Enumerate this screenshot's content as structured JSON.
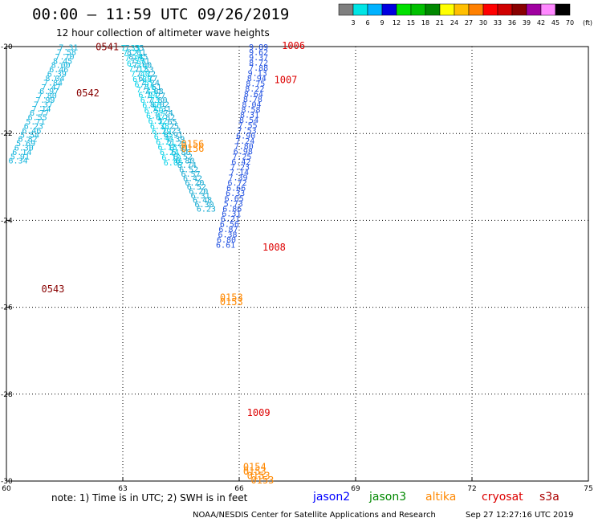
{
  "title": "00:00 – 11:59 UTC 09/26/2019",
  "subtitle": "12 hour collection of altimeter wave heights",
  "note": "note:  1) Time is in UTC;  2) SWH is in feet",
  "credit": "NOAA/NESDIS Center for Satellite Applications and Research",
  "timestamp": "Sep 27 12:27:16 UTC 2019",
  "color_key": {
    "colors": [
      "#7f7f7f",
      "#00e5e5",
      "#00b2ff",
      "#0000e0",
      "#00e000",
      "#00c000",
      "#008800",
      "#ffff00",
      "#ffbf00",
      "#ff8000",
      "#ff0000",
      "#d00000",
      "#880000",
      "#a000a0",
      "#ff88ff",
      "#000000"
    ],
    "labels": [
      "3",
      "6",
      "9",
      "12",
      "15",
      "18",
      "21",
      "24",
      "27",
      "30",
      "33",
      "36",
      "39",
      "42",
      "45",
      "70",
      "(ft)"
    ]
  },
  "chart_data": {
    "type": "scatter",
    "xlim": [
      60,
      75
    ],
    "ylim": [
      -30,
      -20
    ],
    "x_ticks": [
      60,
      63,
      66,
      69,
      72,
      75
    ],
    "y_ticks": [
      -20,
      -22,
      -24,
      -26,
      -28,
      -30
    ],
    "grid": true,
    "legend": [
      {
        "name": "jason2",
        "color": "#0000ff"
      },
      {
        "name": "jason3",
        "color": "#008800"
      },
      {
        "name": "altika",
        "color": "#ff8800"
      },
      {
        "name": "cryosat",
        "color": "#dd0000"
      },
      {
        "name": "s3a",
        "color": "#aa0000"
      }
    ],
    "pass_labels": [
      {
        "text": "0541",
        "x": 62.3,
        "y": -20.01,
        "color": "#880000"
      },
      {
        "text": "0542",
        "x": 61.8,
        "y": -21.07,
        "color": "#880000"
      },
      {
        "text": "0543",
        "x": 60.9,
        "y": -25.58,
        "color": "#880000"
      },
      {
        "text": "1006",
        "x": 67.1,
        "y": -19.98,
        "color": "#dd0000"
      },
      {
        "text": "1007",
        "x": 66.9,
        "y": -20.77,
        "color": "#dd0000"
      },
      {
        "text": "1008",
        "x": 66.6,
        "y": -24.62,
        "color": "#dd0000"
      },
      {
        "text": "1009",
        "x": 66.2,
        "y": -28.43,
        "color": "#dd0000"
      },
      {
        "text": "0156",
        "x": 64.5,
        "y": -22.25,
        "color": "#ff8800"
      },
      {
        "text": "0156",
        "x": 64.5,
        "y": -22.35,
        "color": "#ff8800"
      },
      {
        "text": "0153",
        "x": 65.5,
        "y": -25.78,
        "color": "#ff8800"
      },
      {
        "text": "0153",
        "x": 65.5,
        "y": -25.88,
        "color": "#ff8800"
      },
      {
        "text": "0154",
        "x": 66.1,
        "y": -29.68,
        "color": "#ff8800"
      },
      {
        "text": "0153",
        "x": 66.1,
        "y": -29.78,
        "color": "#ff8800"
      },
      {
        "text": "0153",
        "x": 66.2,
        "y": -29.88,
        "color": "#ff8800"
      },
      {
        "text": "0153",
        "x": 66.3,
        "y": -29.98,
        "color": "#ff8800"
      }
    ],
    "series": [
      {
        "name": "",
        "color": "#14b4dc",
        "points": [
          [
            61.6,
            -20.01,
            "7.31"
          ],
          [
            61.55,
            -20.12,
            "7.58"
          ],
          [
            61.5,
            -20.22,
            "7.70"
          ],
          [
            61.45,
            -20.32,
            "8.45"
          ],
          [
            61.4,
            -20.42,
            "8.00"
          ],
          [
            61.35,
            -20.52,
            "6.46"
          ],
          [
            61.3,
            -20.62,
            "6.39"
          ],
          [
            61.25,
            -20.72,
            "8.04"
          ],
          [
            61.2,
            -20.82,
            "7.84"
          ],
          [
            61.15,
            -20.92,
            "7.47"
          ],
          [
            61.1,
            -21.02,
            "6.97"
          ],
          [
            61.05,
            -21.12,
            "7.80"
          ],
          [
            61.0,
            -21.22,
            "7.99"
          ],
          [
            60.95,
            -21.32,
            "7.37"
          ],
          [
            60.9,
            -21.42,
            "7.14"
          ],
          [
            60.85,
            -21.52,
            "6.77"
          ],
          [
            60.8,
            -21.62,
            "6.55"
          ],
          [
            60.75,
            -21.72,
            "5.71"
          ],
          [
            60.7,
            -21.82,
            "6.23"
          ],
          [
            60.65,
            -21.92,
            "6.46"
          ],
          [
            60.6,
            -22.02,
            "5.54"
          ],
          [
            60.55,
            -22.12,
            "6.82"
          ],
          [
            60.5,
            -22.22,
            "5.69"
          ],
          [
            60.45,
            -22.32,
            "6.30"
          ],
          [
            60.4,
            -22.42,
            "6.14"
          ],
          [
            60.35,
            -22.52,
            "5.91"
          ],
          [
            60.3,
            -22.62,
            "6.34"
          ]
        ]
      },
      {
        "name": "",
        "color": "#2050e0",
        "points": [
          [
            66.5,
            -20.0,
            "9.89"
          ],
          [
            66.5,
            -20.12,
            "9.62"
          ],
          [
            66.5,
            -20.24,
            "9.37"
          ],
          [
            66.5,
            -20.36,
            "8.72"
          ],
          [
            66.5,
            -20.48,
            "7.88"
          ],
          [
            66.47,
            -20.6,
            "9.13"
          ],
          [
            66.45,
            -20.72,
            "8.94"
          ],
          [
            66.42,
            -20.84,
            "8.75"
          ],
          [
            66.4,
            -20.96,
            "8.22"
          ],
          [
            66.37,
            -21.08,
            "8.64"
          ],
          [
            66.35,
            -21.2,
            "8.78"
          ],
          [
            66.32,
            -21.32,
            "8.04"
          ],
          [
            66.3,
            -21.44,
            "8.58"
          ],
          [
            66.27,
            -21.56,
            "8.31"
          ],
          [
            66.25,
            -21.68,
            "8.54"
          ],
          [
            66.22,
            -21.8,
            "7.55"
          ],
          [
            66.2,
            -21.92,
            "7.53"
          ],
          [
            66.17,
            -22.04,
            "6.90"
          ],
          [
            66.15,
            -22.16,
            "7.24"
          ],
          [
            66.12,
            -22.28,
            "7.80"
          ],
          [
            66.1,
            -22.4,
            "6.98"
          ],
          [
            66.07,
            -22.52,
            "7.25"
          ],
          [
            66.05,
            -22.64,
            "6.42"
          ],
          [
            66.02,
            -22.76,
            "7.23"
          ],
          [
            66.0,
            -22.88,
            "7.14"
          ],
          [
            65.97,
            -23.0,
            "7.39"
          ],
          [
            65.95,
            -23.12,
            "6.72"
          ],
          [
            65.92,
            -23.24,
            "6.66"
          ],
          [
            65.9,
            -23.36,
            "6.33"
          ],
          [
            65.87,
            -23.48,
            "6.65"
          ],
          [
            65.85,
            -23.6,
            "5.73"
          ],
          [
            65.82,
            -23.72,
            "6.86"
          ],
          [
            65.8,
            -23.84,
            "6.31"
          ],
          [
            65.77,
            -23.96,
            "6.21"
          ],
          [
            65.75,
            -24.08,
            "6.56"
          ],
          [
            65.72,
            -24.2,
            "6.87"
          ],
          [
            65.7,
            -24.32,
            "6.38"
          ],
          [
            65.67,
            -24.44,
            "6.80"
          ],
          [
            65.65,
            -24.56,
            "6.61"
          ]
        ]
      },
      {
        "name": "",
        "color": "#10a8d0",
        "points": [
          [
            63.3,
            -20.02,
            "7.35"
          ],
          [
            63.35,
            -20.12,
            "8.01"
          ],
          [
            63.4,
            -20.22,
            "8.45"
          ],
          [
            63.45,
            -20.32,
            "7.71"
          ],
          [
            63.5,
            -20.42,
            "7.00"
          ],
          [
            63.55,
            -20.52,
            "7.53"
          ],
          [
            63.6,
            -20.62,
            "7.72"
          ],
          [
            63.65,
            -20.72,
            "6.77"
          ],
          [
            63.7,
            -20.82,
            "7.24"
          ],
          [
            63.75,
            -20.92,
            "7.51"
          ],
          [
            63.8,
            -21.02,
            "7.88"
          ],
          [
            63.85,
            -21.12,
            "7.27"
          ],
          [
            63.9,
            -21.22,
            "7.80"
          ],
          [
            63.95,
            -21.32,
            "8.02"
          ],
          [
            64.0,
            -21.42,
            "7.31"
          ],
          [
            64.05,
            -21.52,
            "7.74"
          ],
          [
            64.1,
            -21.62,
            "6.82"
          ],
          [
            64.15,
            -21.72,
            "7.65"
          ],
          [
            64.2,
            -21.82,
            "7.25"
          ],
          [
            64.25,
            -21.92,
            "7.23"
          ],
          [
            64.3,
            -22.02,
            "6.91"
          ],
          [
            64.35,
            -22.12,
            "7.39"
          ],
          [
            64.4,
            -22.22,
            "7.25"
          ],
          [
            64.45,
            -22.32,
            "6.91"
          ],
          [
            64.5,
            -22.42,
            "6.86"
          ],
          [
            64.55,
            -22.52,
            "6.52"
          ],
          [
            64.6,
            -22.62,
            "6.80"
          ],
          [
            64.65,
            -22.72,
            "6.74"
          ],
          [
            64.7,
            -22.82,
            "6.52"
          ],
          [
            64.75,
            -22.92,
            "6.57"
          ],
          [
            64.8,
            -23.02,
            "6.42"
          ],
          [
            64.85,
            -23.12,
            "6.20"
          ],
          [
            64.9,
            -23.22,
            "6.52"
          ],
          [
            64.95,
            -23.32,
            "6.20"
          ],
          [
            65.0,
            -23.42,
            "6.31"
          ],
          [
            65.05,
            -23.52,
            "6.48"
          ],
          [
            65.1,
            -23.62,
            "6.30"
          ],
          [
            65.15,
            -23.72,
            "6.23"
          ]
        ]
      },
      {
        "name": "",
        "color": "#00d0e8",
        "points": [
          [
            63.2,
            -20.02,
            "7.33"
          ],
          [
            63.25,
            -20.14,
            "7.21"
          ],
          [
            63.3,
            -20.26,
            "7.06"
          ],
          [
            63.35,
            -20.38,
            "6.97"
          ],
          [
            63.4,
            -20.5,
            "7.12"
          ],
          [
            63.45,
            -20.62,
            "7.40"
          ],
          [
            63.5,
            -20.74,
            "6.88"
          ],
          [
            63.55,
            -20.86,
            "6.91"
          ],
          [
            63.6,
            -20.98,
            "7.15"
          ],
          [
            63.65,
            -21.1,
            "6.94"
          ],
          [
            63.7,
            -21.22,
            "6.73"
          ],
          [
            63.75,
            -21.34,
            "6.66"
          ],
          [
            63.8,
            -21.46,
            "6.59"
          ],
          [
            63.85,
            -21.58,
            "6.47"
          ],
          [
            63.9,
            -21.7,
            "6.52"
          ],
          [
            63.95,
            -21.82,
            "6.38"
          ],
          [
            64.0,
            -21.94,
            "6.29"
          ],
          [
            64.05,
            -22.06,
            "6.33"
          ],
          [
            64.1,
            -22.18,
            "6.21"
          ],
          [
            64.15,
            -22.3,
            "6.18"
          ],
          [
            64.2,
            -22.42,
            "6.24"
          ],
          [
            64.25,
            -22.54,
            "6.10"
          ],
          [
            64.3,
            -22.66,
            "6.05"
          ]
        ]
      }
    ]
  }
}
